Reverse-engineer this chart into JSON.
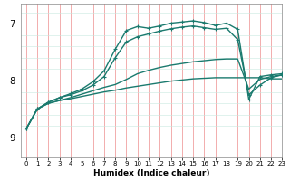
{
  "xlabel": "Humidex (Indice chaleur)",
  "ylabel": "",
  "xlim": [
    -0.5,
    23
  ],
  "ylim": [
    -9.35,
    -6.65
  ],
  "yticks": [
    -9,
    -8,
    -7
  ],
  "xticks": [
    0,
    1,
    2,
    3,
    4,
    5,
    6,
    7,
    8,
    9,
    10,
    11,
    12,
    13,
    14,
    15,
    16,
    17,
    18,
    19,
    20,
    21,
    22,
    23
  ],
  "bg_color": "#ffffff",
  "grid_color_v": "#f0a0a0",
  "grid_color_h": "#c8e8e0",
  "line_color": "#1a7a6e",
  "lines": [
    {
      "x": [
        0,
        1,
        2,
        3,
        4,
        5,
        6,
        7,
        8,
        9,
        10,
        11,
        12,
        13,
        14,
        15,
        16,
        17,
        18,
        19,
        20,
        21,
        22,
        23
      ],
      "y": [
        -8.85,
        -8.5,
        -8.4,
        -8.35,
        -8.32,
        -8.28,
        -8.24,
        -8.2,
        -8.17,
        -8.13,
        -8.1,
        -8.07,
        -8.04,
        -8.01,
        -7.99,
        -7.97,
        -7.96,
        -7.95,
        -7.95,
        -7.95,
        -7.95,
        -7.95,
        -7.97,
        -7.97
      ],
      "marker": null,
      "lw": 1.0
    },
    {
      "x": [
        0,
        1,
        2,
        3,
        4,
        5,
        6,
        7,
        8,
        9,
        10,
        11,
        12,
        13,
        14,
        15,
        16,
        17,
        18,
        19,
        20,
        21,
        22,
        23
      ],
      "y": [
        -8.85,
        -8.5,
        -8.4,
        -8.35,
        -8.3,
        -8.24,
        -8.18,
        -8.12,
        -8.07,
        -7.98,
        -7.88,
        -7.82,
        -7.77,
        -7.73,
        -7.7,
        -7.67,
        -7.65,
        -7.63,
        -7.62,
        -7.62,
        -8.15,
        -7.98,
        -7.93,
        -7.9
      ],
      "marker": null,
      "lw": 1.0
    },
    {
      "x": [
        0,
        1,
        2,
        3,
        4,
        5,
        6,
        7,
        8,
        9,
        10,
        11,
        12,
        13,
        14,
        15,
        16,
        17,
        18,
        19,
        20,
        21,
        22,
        23
      ],
      "y": [
        -8.85,
        -8.5,
        -8.38,
        -8.3,
        -8.25,
        -8.18,
        -8.08,
        -7.93,
        -7.6,
        -7.32,
        -7.23,
        -7.18,
        -7.13,
        -7.09,
        -7.06,
        -7.04,
        -7.07,
        -7.1,
        -7.08,
        -7.28,
        -8.25,
        -8.08,
        -7.95,
        -7.9
      ],
      "marker": "+",
      "ms": 3.5,
      "lw": 1.0
    },
    {
      "x": [
        0,
        1,
        2,
        3,
        4,
        5,
        6,
        7,
        8,
        9,
        10,
        11,
        12,
        13,
        14,
        15,
        16,
        17,
        18,
        19,
        20,
        21,
        22,
        23
      ],
      "y": [
        -8.85,
        -8.5,
        -8.38,
        -8.3,
        -8.23,
        -8.15,
        -8.02,
        -7.83,
        -7.45,
        -7.12,
        -7.05,
        -7.08,
        -7.04,
        -6.99,
        -6.97,
        -6.95,
        -6.98,
        -7.03,
        -6.99,
        -7.1,
        -8.33,
        -7.93,
        -7.9,
        -7.88
      ],
      "marker": "+",
      "ms": 3.5,
      "lw": 1.0
    }
  ]
}
